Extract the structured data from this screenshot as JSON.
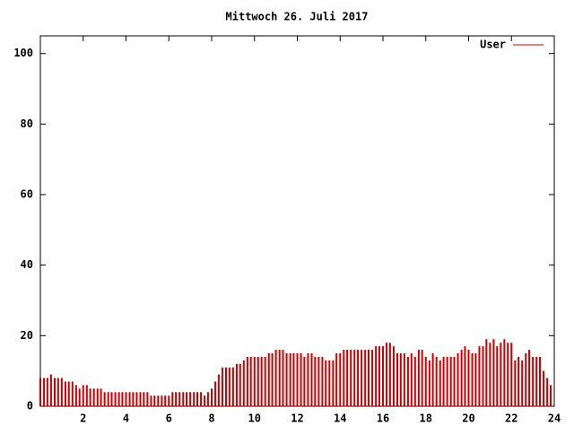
{
  "chart_data": {
    "type": "impulse",
    "title": "Mittwoch 26. Juli 2017",
    "xlim": [
      0,
      24
    ],
    "xticks": [
      2,
      4,
      6,
      8,
      10,
      12,
      14,
      16,
      18,
      20,
      22,
      24
    ],
    "ylim": [
      0,
      105
    ],
    "yticks": [
      0,
      20,
      40,
      60,
      80,
      100
    ],
    "legend": "top-right",
    "x": [
      0,
      0.17,
      0.33,
      0.5,
      0.67,
      0.83,
      1,
      1.17,
      1.33,
      1.5,
      1.67,
      1.83,
      2,
      2.17,
      2.33,
      2.5,
      2.67,
      2.83,
      3,
      3.17,
      3.33,
      3.5,
      3.67,
      3.83,
      4,
      4.17,
      4.33,
      4.5,
      4.67,
      4.83,
      5,
      5.17,
      5.33,
      5.5,
      5.67,
      5.83,
      6,
      6.17,
      6.33,
      6.5,
      6.67,
      6.83,
      7,
      7.17,
      7.33,
      7.5,
      7.67,
      7.83,
      8,
      8.17,
      8.33,
      8.5,
      8.67,
      8.83,
      9,
      9.17,
      9.33,
      9.5,
      9.67,
      9.83,
      10,
      10.17,
      10.33,
      10.5,
      10.67,
      10.83,
      11,
      11.17,
      11.33,
      11.5,
      11.67,
      11.83,
      12,
      12.17,
      12.33,
      12.5,
      12.67,
      12.83,
      13,
      13.17,
      13.33,
      13.5,
      13.67,
      13.83,
      14,
      14.17,
      14.33,
      14.5,
      14.67,
      14.83,
      15,
      15.17,
      15.33,
      15.5,
      15.67,
      15.83,
      16,
      16.17,
      16.33,
      16.5,
      16.67,
      16.83,
      17,
      17.17,
      17.33,
      17.5,
      17.67,
      17.83,
      18,
      18.17,
      18.33,
      18.5,
      18.67,
      18.83,
      19,
      19.17,
      19.33,
      19.5,
      19.67,
      19.83,
      20,
      20.17,
      20.33,
      20.5,
      20.67,
      20.83,
      21,
      21.17,
      21.33,
      21.5,
      21.67,
      21.83,
      22,
      22.17,
      22.33,
      22.5,
      22.67,
      22.83,
      23,
      23.17,
      23.33,
      23.5,
      23.67,
      23.83
    ],
    "series": [
      {
        "name": "User",
        "color": "#cc0000",
        "values": [
          8,
          8,
          8,
          9,
          8,
          8,
          8,
          7,
          7,
          7,
          6,
          5,
          6,
          6,
          5,
          5,
          5,
          5,
          4,
          4,
          4,
          4,
          4,
          4,
          4,
          4,
          4,
          4,
          4,
          4,
          4,
          3,
          3,
          3,
          3,
          3,
          3,
          4,
          4,
          4,
          4,
          4,
          4,
          4,
          4,
          4,
          3,
          4,
          5,
          7,
          9,
          11,
          11,
          11,
          11,
          12,
          12,
          13,
          14,
          14,
          14,
          14,
          14,
          14,
          15,
          15,
          16,
          16,
          16,
          15,
          15,
          15,
          15,
          15,
          14,
          15,
          15,
          14,
          14,
          14,
          13,
          13,
          13,
          15,
          15,
          16,
          16,
          16,
          16,
          16,
          16,
          16,
          16,
          16,
          17,
          17,
          17,
          18,
          18,
          17,
          15,
          15,
          15,
          14,
          15,
          14,
          16,
          16,
          14,
          13,
          15,
          14,
          13,
          14,
          14,
          14,
          14,
          15,
          16,
          17,
          16,
          15,
          15,
          17,
          17,
          19,
          18,
          19,
          17,
          18,
          19,
          18,
          18,
          13,
          14,
          13,
          15,
          16,
          14,
          14,
          14,
          10,
          8,
          6
        ]
      }
    ]
  }
}
